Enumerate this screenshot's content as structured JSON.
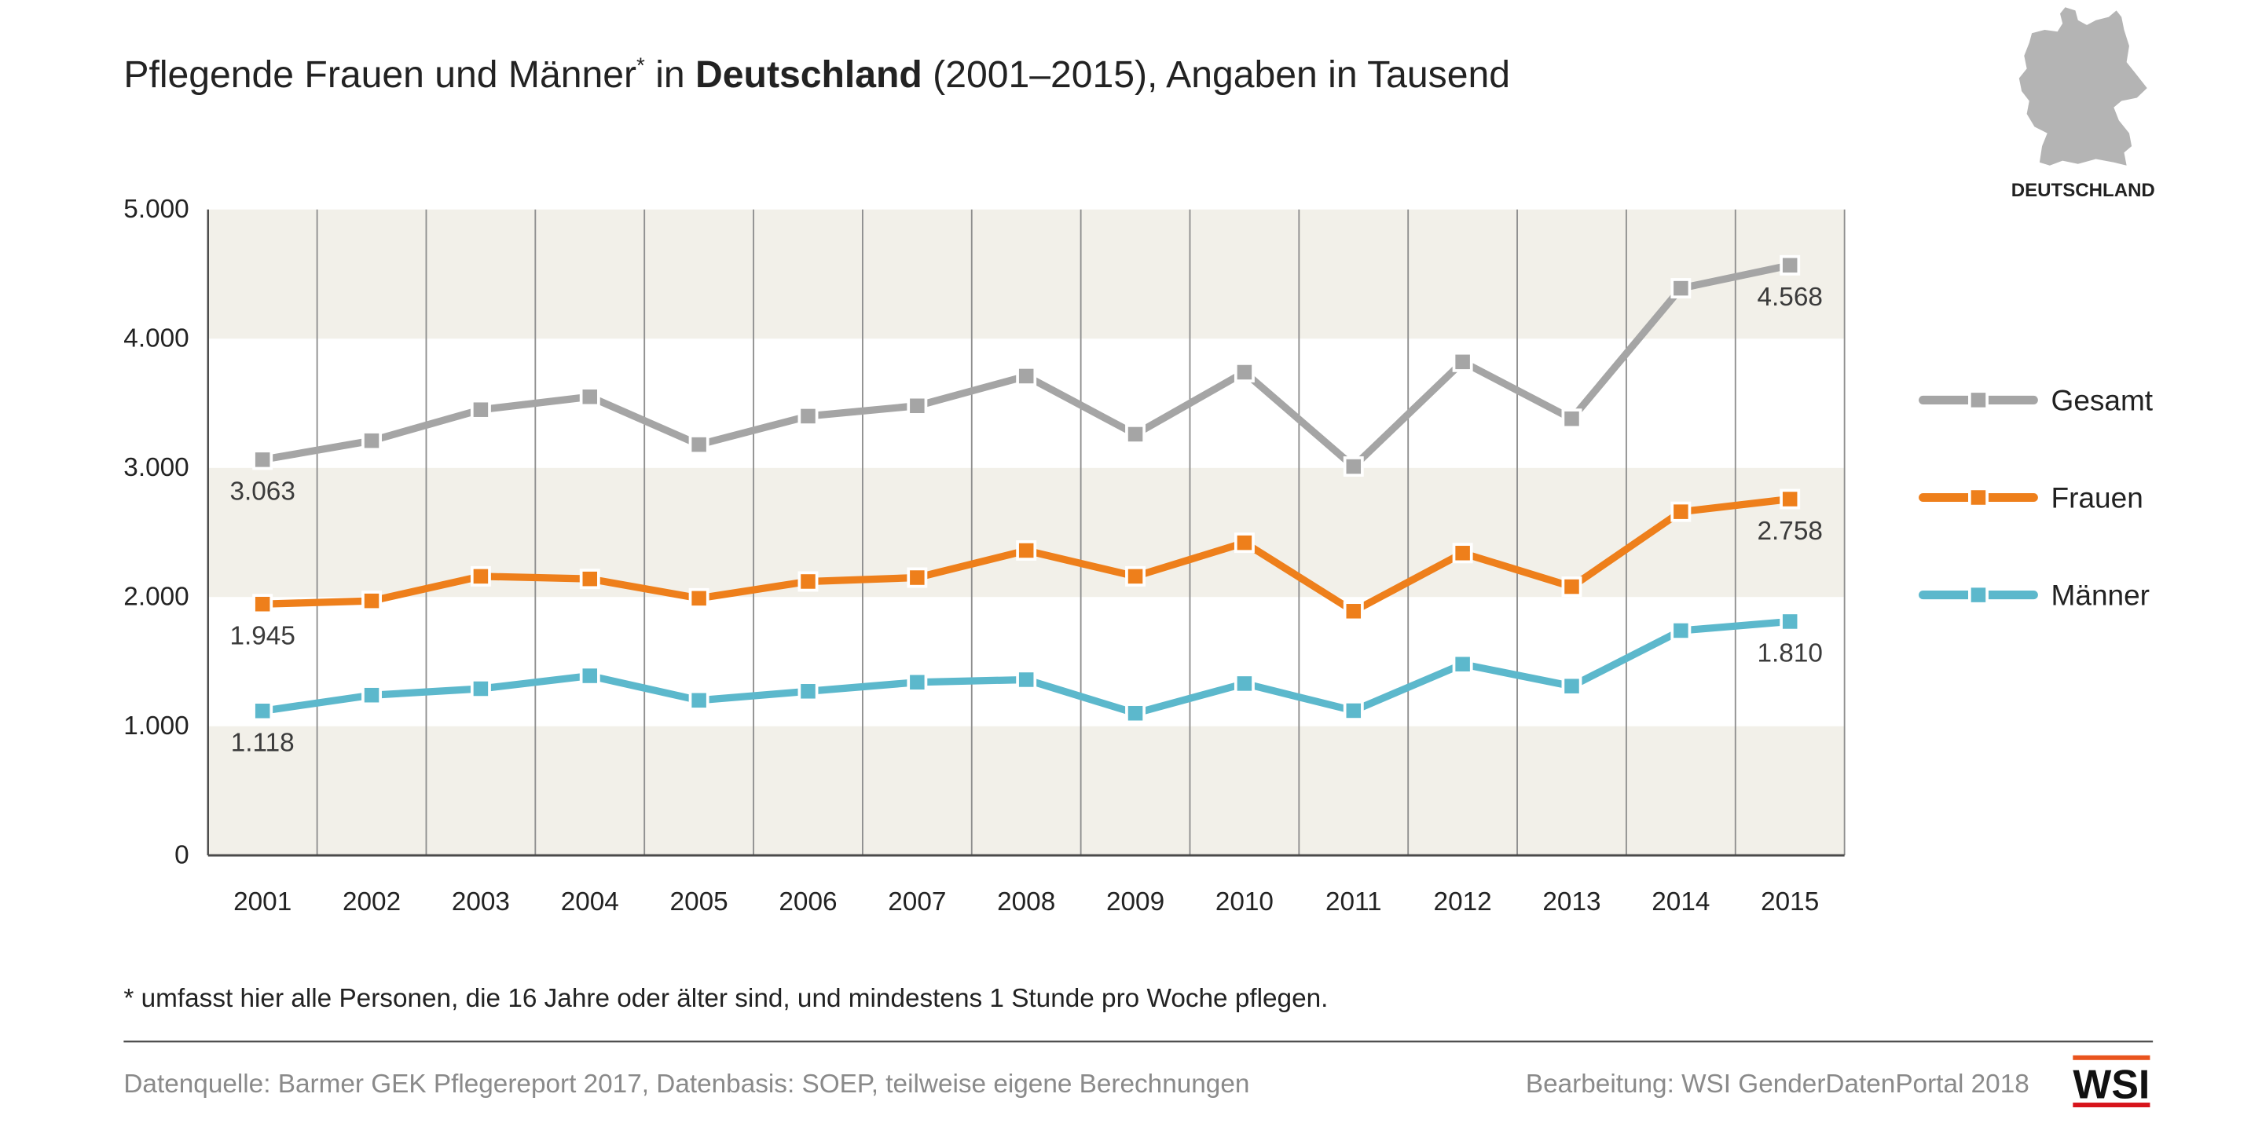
{
  "map_label": "DEUTSCHLAND",
  "footnote": "* umfasst hier alle Personen, die 16 Jahre oder älter sind, und mindestens 1 Stunde pro Woche pflegen.",
  "source": "Datenquelle: Barmer GEK Pflegereport 2017, Datenbasis: SOEP, teilweise eigene Berechnungen",
  "credit": "Bearbeitung: WSI GenderDatenPortal 2018",
  "logo": {
    "text": "WSI",
    "top_bar_color": "#e9541e",
    "bottom_bar_color": "#d7141b"
  },
  "colors": {
    "band": "#f2f0e9",
    "grid": "#8e8e8e",
    "axis": "#4a4a4a",
    "map": "#b4b4b4",
    "divider": "#4a4a4a"
  },
  "icons": {
    "map": "germany-map-icon"
  },
  "chart_data": {
    "type": "line",
    "title": {
      "main": "Pflegende Frauen und Männer",
      "mark": "*",
      "connector": "in",
      "emphasis": "Deutschland",
      "suffix": "(2001–2015), Angaben in Tausend"
    },
    "xlabel": "",
    "ylabel": "",
    "x": [
      "2001",
      "2002",
      "2003",
      "2004",
      "2005",
      "2006",
      "2007",
      "2008",
      "2009",
      "2010",
      "2011",
      "2012",
      "2013",
      "2014",
      "2015"
    ],
    "ylim": [
      0,
      5000
    ],
    "yticks": [
      0,
      1000,
      2000,
      3000,
      4000,
      5000
    ],
    "ytick_labels": [
      "0",
      "1.000",
      "2.000",
      "3.000",
      "4.000",
      "5.000"
    ],
    "grid": {
      "vertical_lines": true,
      "horizontal_bands": true
    },
    "legend_position": "right",
    "series": [
      {
        "name": "Gesamt",
        "color": "#a5a5a5",
        "values": [
          3063,
          3210,
          3450,
          3550,
          3180,
          3400,
          3480,
          3710,
          3260,
          3740,
          3010,
          3820,
          3380,
          4390,
          4568
        ],
        "data_labels": [
          {
            "x": "2001",
            "text": "3.063"
          },
          {
            "x": "2015",
            "text": "4.568"
          }
        ]
      },
      {
        "name": "Frauen",
        "color": "#ee7f1b",
        "values": [
          1945,
          1970,
          2160,
          2140,
          1990,
          2120,
          2150,
          2360,
          2160,
          2420,
          1890,
          2340,
          2080,
          2660,
          2758
        ],
        "data_labels": [
          {
            "x": "2001",
            "text": "1.945"
          },
          {
            "x": "2015",
            "text": "2.758"
          }
        ]
      },
      {
        "name": "Männer",
        "color": "#5cb8cc",
        "values": [
          1118,
          1240,
          1290,
          1390,
          1200,
          1270,
          1340,
          1360,
          1100,
          1330,
          1120,
          1480,
          1310,
          1740,
          1810
        ],
        "data_labels": [
          {
            "x": "2001",
            "text": "1.118"
          },
          {
            "x": "2015",
            "text": "1.810"
          }
        ]
      }
    ]
  }
}
